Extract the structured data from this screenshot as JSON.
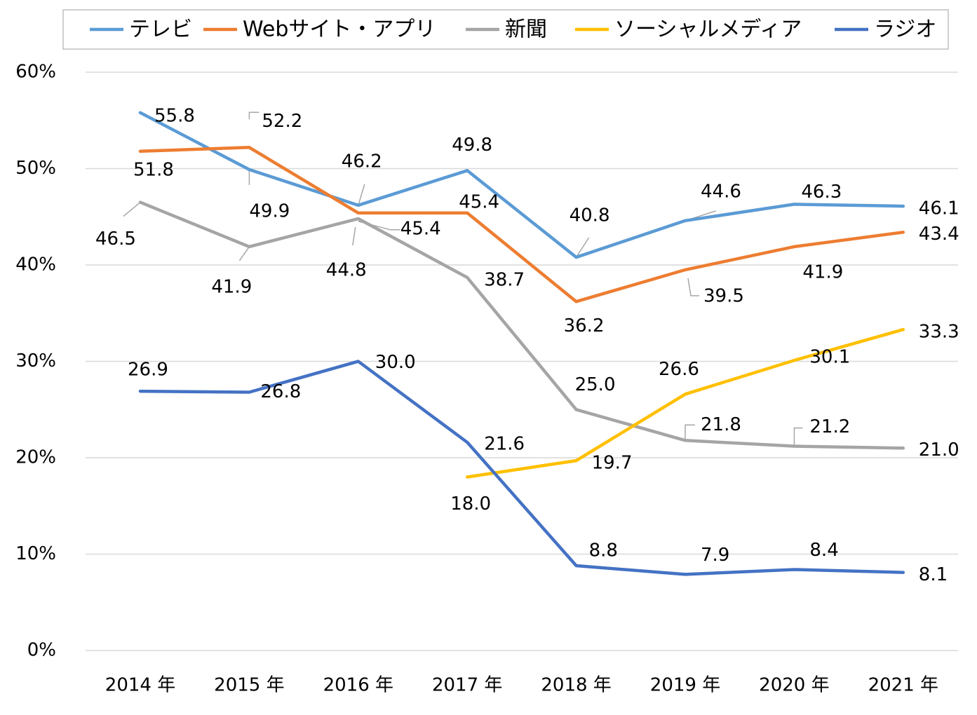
{
  "chart_data": {
    "type": "line",
    "categories": [
      "2014 年",
      "2015 年",
      "2016 年",
      "2017 年",
      "2018 年",
      "2019 年",
      "2020 年",
      "2021 年"
    ],
    "ylim": [
      0,
      60
    ],
    "y_ticks": [
      "0%",
      "10%",
      "20%",
      "30%",
      "40%",
      "50%",
      "60%"
    ],
    "grid": true,
    "legend_position": "top",
    "series": [
      {
        "name": "テレビ",
        "color": "#5b9bd5",
        "values": [
          55.8,
          49.9,
          46.2,
          49.8,
          40.8,
          44.6,
          46.3,
          46.1
        ],
        "labels": [
          "55.8",
          "49.9",
          "46.2",
          "49.8",
          "40.8",
          "44.6",
          "46.3",
          "46.1"
        ]
      },
      {
        "name": "Webサイト・アプリ",
        "color": "#ed7d31",
        "values": [
          51.8,
          52.2,
          45.4,
          45.4,
          36.2,
          39.5,
          41.9,
          43.4
        ],
        "labels": [
          "51.8",
          "52.2",
          "45.4",
          "45.4",
          "36.2",
          "39.5",
          "41.9",
          "43.4"
        ]
      },
      {
        "name": "新聞",
        "color": "#a5a5a5",
        "values": [
          46.5,
          41.9,
          44.8,
          38.7,
          25.0,
          21.8,
          21.2,
          21.0
        ],
        "labels": [
          "46.5",
          "41.9",
          "44.8",
          "38.7",
          "25.0",
          "21.8",
          "21.2",
          "21.0"
        ]
      },
      {
        "name": "ソーシャルメディア",
        "color": "#ffc000",
        "values": [
          null,
          null,
          null,
          18.0,
          19.7,
          26.6,
          30.1,
          33.3
        ],
        "labels": [
          null,
          null,
          null,
          "18.0",
          "19.7",
          "26.6",
          "30.1",
          "33.3"
        ]
      },
      {
        "name": "ラジオ",
        "color": "#4472c4",
        "values": [
          26.9,
          26.8,
          30.0,
          21.6,
          8.8,
          7.9,
          8.4,
          8.1
        ],
        "labels": [
          "26.9",
          "26.8",
          "30.0",
          "21.6",
          "8.8",
          "7.9",
          "8.4",
          "8.1"
        ]
      }
    ]
  }
}
